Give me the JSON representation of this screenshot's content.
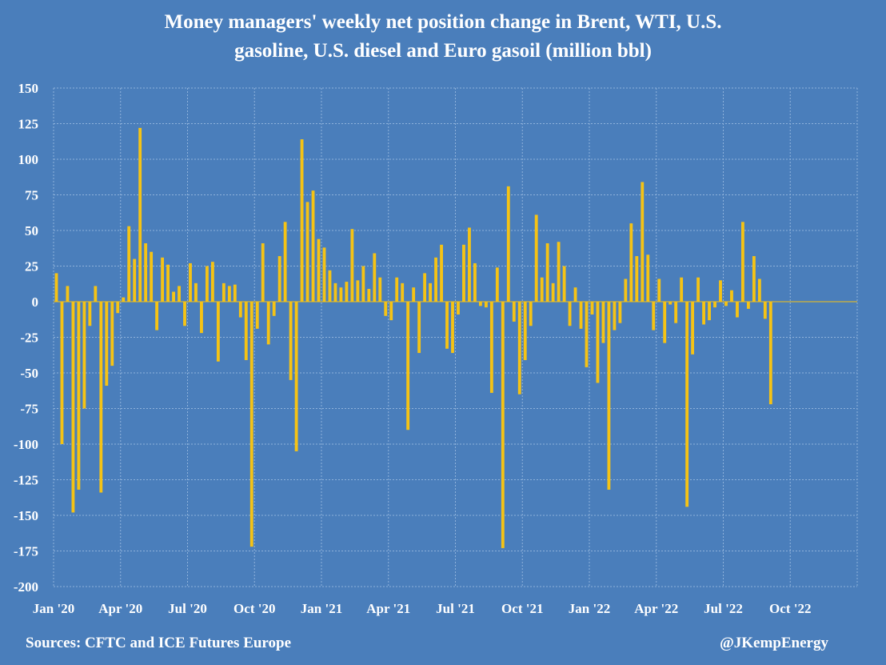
{
  "colors": {
    "background": "#4a7ebb",
    "bars": "#f5c315",
    "grid": "#8fb2db",
    "text": "#ffffff"
  },
  "header": {
    "title_line1": "Money managers' weekly net position change in Brent, WTI, U.S.",
    "title_line2": "gasoline, U.S. diesel and Euro gasoil (million bbl)"
  },
  "footer": {
    "source": "Sources: CFTC and ICE Futures Europe",
    "handle": "@JKempEnergy"
  },
  "chart_data": {
    "type": "bar",
    "title": "Money managers' weekly net position change in Brent, WTI, U.S. gasoline, U.S. diesel and Euro gasoil (million bbl)",
    "ylim": [
      -200,
      150
    ],
    "y_ticks": [
      150,
      125,
      100,
      75,
      50,
      25,
      0,
      -25,
      -50,
      -75,
      -100,
      -125,
      -150,
      -175,
      -200
    ],
    "x_tick_labels": [
      "Jan '20",
      "Apr '20",
      "Jul '20",
      "Oct '20",
      "Jan '21",
      "Apr '21",
      "Jul '21",
      "Oct '21",
      "Jan '22",
      "Apr '22",
      "Jul '22",
      "Oct '22"
    ],
    "x_range": [
      "2020-01",
      "2022-12"
    ],
    "grid": true,
    "series": [
      {
        "values": [
          20,
          -100,
          11,
          -148,
          -132,
          -75,
          -17,
          11,
          -134,
          -59,
          -45,
          -8,
          3,
          53,
          30,
          122,
          41,
          35,
          -20,
          31,
          26,
          7,
          11,
          -17,
          27,
          13,
          -22,
          25,
          28,
          -42,
          13,
          11,
          12,
          -11,
          -41,
          -172,
          -19,
          41,
          -30,
          -10,
          32,
          56,
          -55,
          -105,
          114,
          70,
          78,
          44,
          38,
          22,
          13,
          10,
          14,
          51,
          15,
          25,
          9,
          34,
          17,
          -10,
          -13,
          17,
          13,
          -90,
          10,
          -36,
          20,
          13,
          31,
          40,
          -33,
          -36,
          -9,
          40,
          52,
          27,
          -3,
          -4,
          -64,
          24,
          -173,
          81,
          -14,
          -65,
          -41,
          -17,
          61,
          17,
          41,
          13,
          42,
          25,
          -17,
          10,
          -19,
          -46,
          -9,
          -57,
          -29,
          -132,
          -20,
          -15,
          16,
          55,
          32,
          84,
          33,
          -20,
          16,
          -29,
          -2,
          -15,
          17,
          -144,
          -37,
          17,
          -16,
          -13,
          -4,
          15,
          -3,
          8,
          -11,
          56,
          -5,
          32,
          16,
          -12,
          -72
        ]
      }
    ]
  }
}
